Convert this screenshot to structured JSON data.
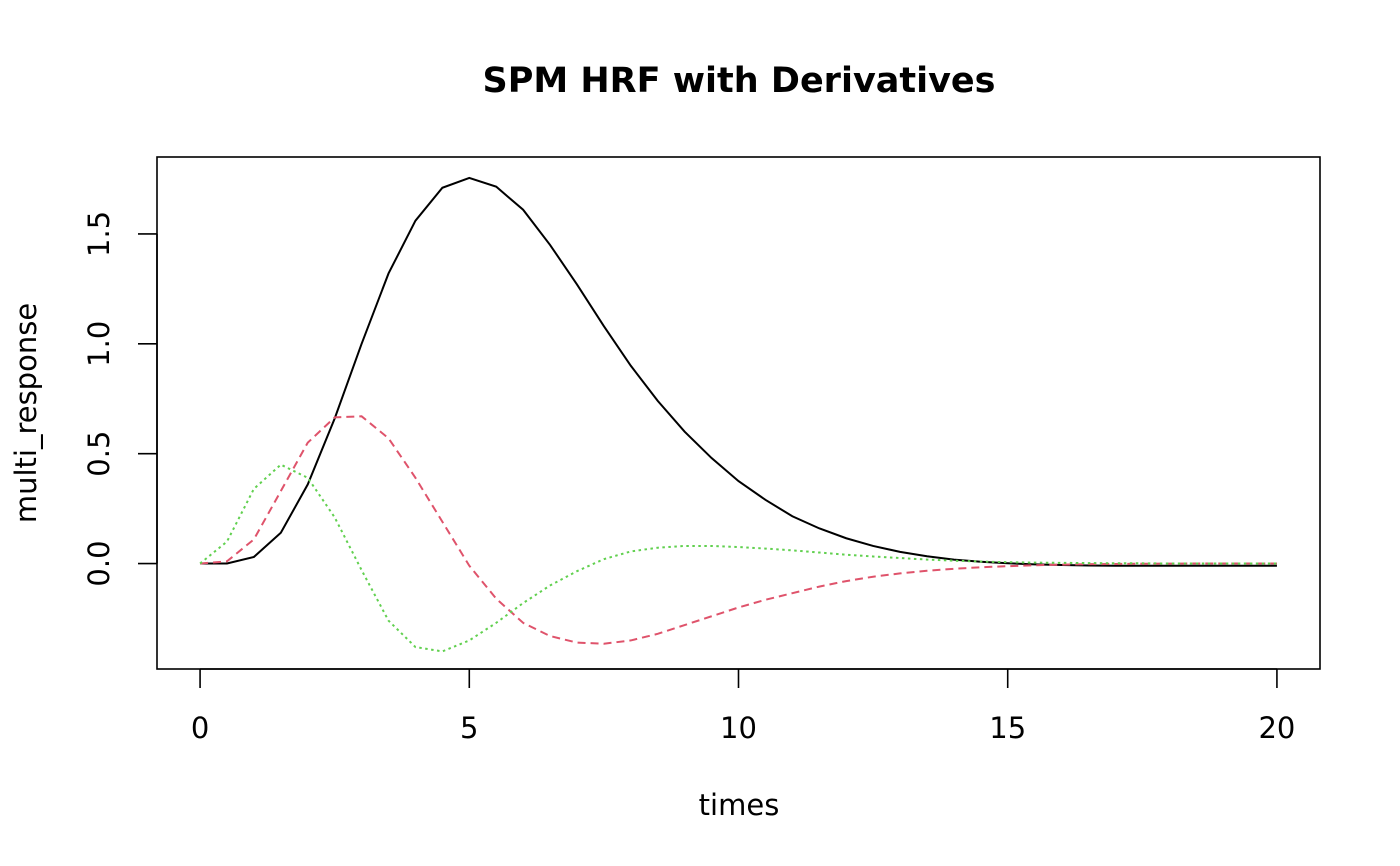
{
  "chart_data": {
    "type": "line",
    "title": "SPM HRF with Derivatives",
    "xlabel": "times",
    "ylabel": "multi_response",
    "xlim": [
      -0.8,
      20.8
    ],
    "ylim": [
      -0.48,
      1.85
    ],
    "x_ticks": [
      0,
      5,
      10,
      15,
      20
    ],
    "x_tick_labels": [
      "0",
      "5",
      "10",
      "15",
      "20"
    ],
    "y_ticks": [
      0.0,
      0.5,
      1.0,
      1.5
    ],
    "y_tick_labels": [
      "0.0",
      "0.5",
      "1.0",
      "1.5"
    ],
    "x": [
      0,
      0.5,
      1,
      1.5,
      2,
      2.5,
      3,
      3.5,
      4,
      4.5,
      5,
      5.5,
      6,
      6.5,
      7,
      7.5,
      8,
      8.5,
      9,
      9.5,
      10,
      10.5,
      11,
      11.5,
      12,
      12.5,
      13,
      13.5,
      14,
      14.5,
      15,
      15.5,
      16,
      16.5,
      17,
      17.5,
      18,
      18.5,
      19,
      19.5,
      20
    ],
    "series": [
      {
        "color": "#000000",
        "dash": "solid",
        "values": [
          0,
          0,
          0.03,
          0.14,
          0.36,
          0.66,
          1.0,
          1.32,
          1.56,
          1.71,
          1.755,
          1.715,
          1.61,
          1.45,
          1.27,
          1.08,
          0.9,
          0.74,
          0.6,
          0.48,
          0.375,
          0.29,
          0.215,
          0.16,
          0.115,
          0.08,
          0.053,
          0.033,
          0.018,
          0.008,
          0.001,
          -0.004,
          -0.007,
          -0.009,
          -0.01,
          -0.01,
          -0.01,
          -0.01,
          -0.01,
          -0.01,
          -0.01
        ]
      },
      {
        "color": "#DF536B",
        "dash": "dashed",
        "values": [
          0,
          0.01,
          0.11,
          0.33,
          0.55,
          0.665,
          0.67,
          0.57,
          0.39,
          0.19,
          -0.01,
          -0.16,
          -0.27,
          -0.33,
          -0.36,
          -0.365,
          -0.35,
          -0.32,
          -0.28,
          -0.24,
          -0.2,
          -0.165,
          -0.135,
          -0.105,
          -0.08,
          -0.06,
          -0.045,
          -0.033,
          -0.024,
          -0.017,
          -0.012,
          -0.008,
          -0.005,
          -0.003,
          -0.002,
          -0.001,
          -0.0005,
          0,
          0,
          0,
          0
        ]
      },
      {
        "color": "#61D04F",
        "dash": "dotted",
        "values": [
          0,
          0.1,
          0.34,
          0.45,
          0.39,
          0.21,
          -0.03,
          -0.26,
          -0.38,
          -0.4,
          -0.35,
          -0.27,
          -0.18,
          -0.1,
          -0.035,
          0.02,
          0.055,
          0.072,
          0.08,
          0.08,
          0.075,
          0.068,
          0.06,
          0.05,
          0.04,
          0.032,
          0.025,
          0.018,
          0.013,
          0.009,
          0.006,
          0.004,
          0.003,
          0.002,
          0.001,
          0.001,
          0,
          0,
          0,
          0,
          0
        ]
      }
    ],
    "grid": false,
    "legend": "none"
  }
}
